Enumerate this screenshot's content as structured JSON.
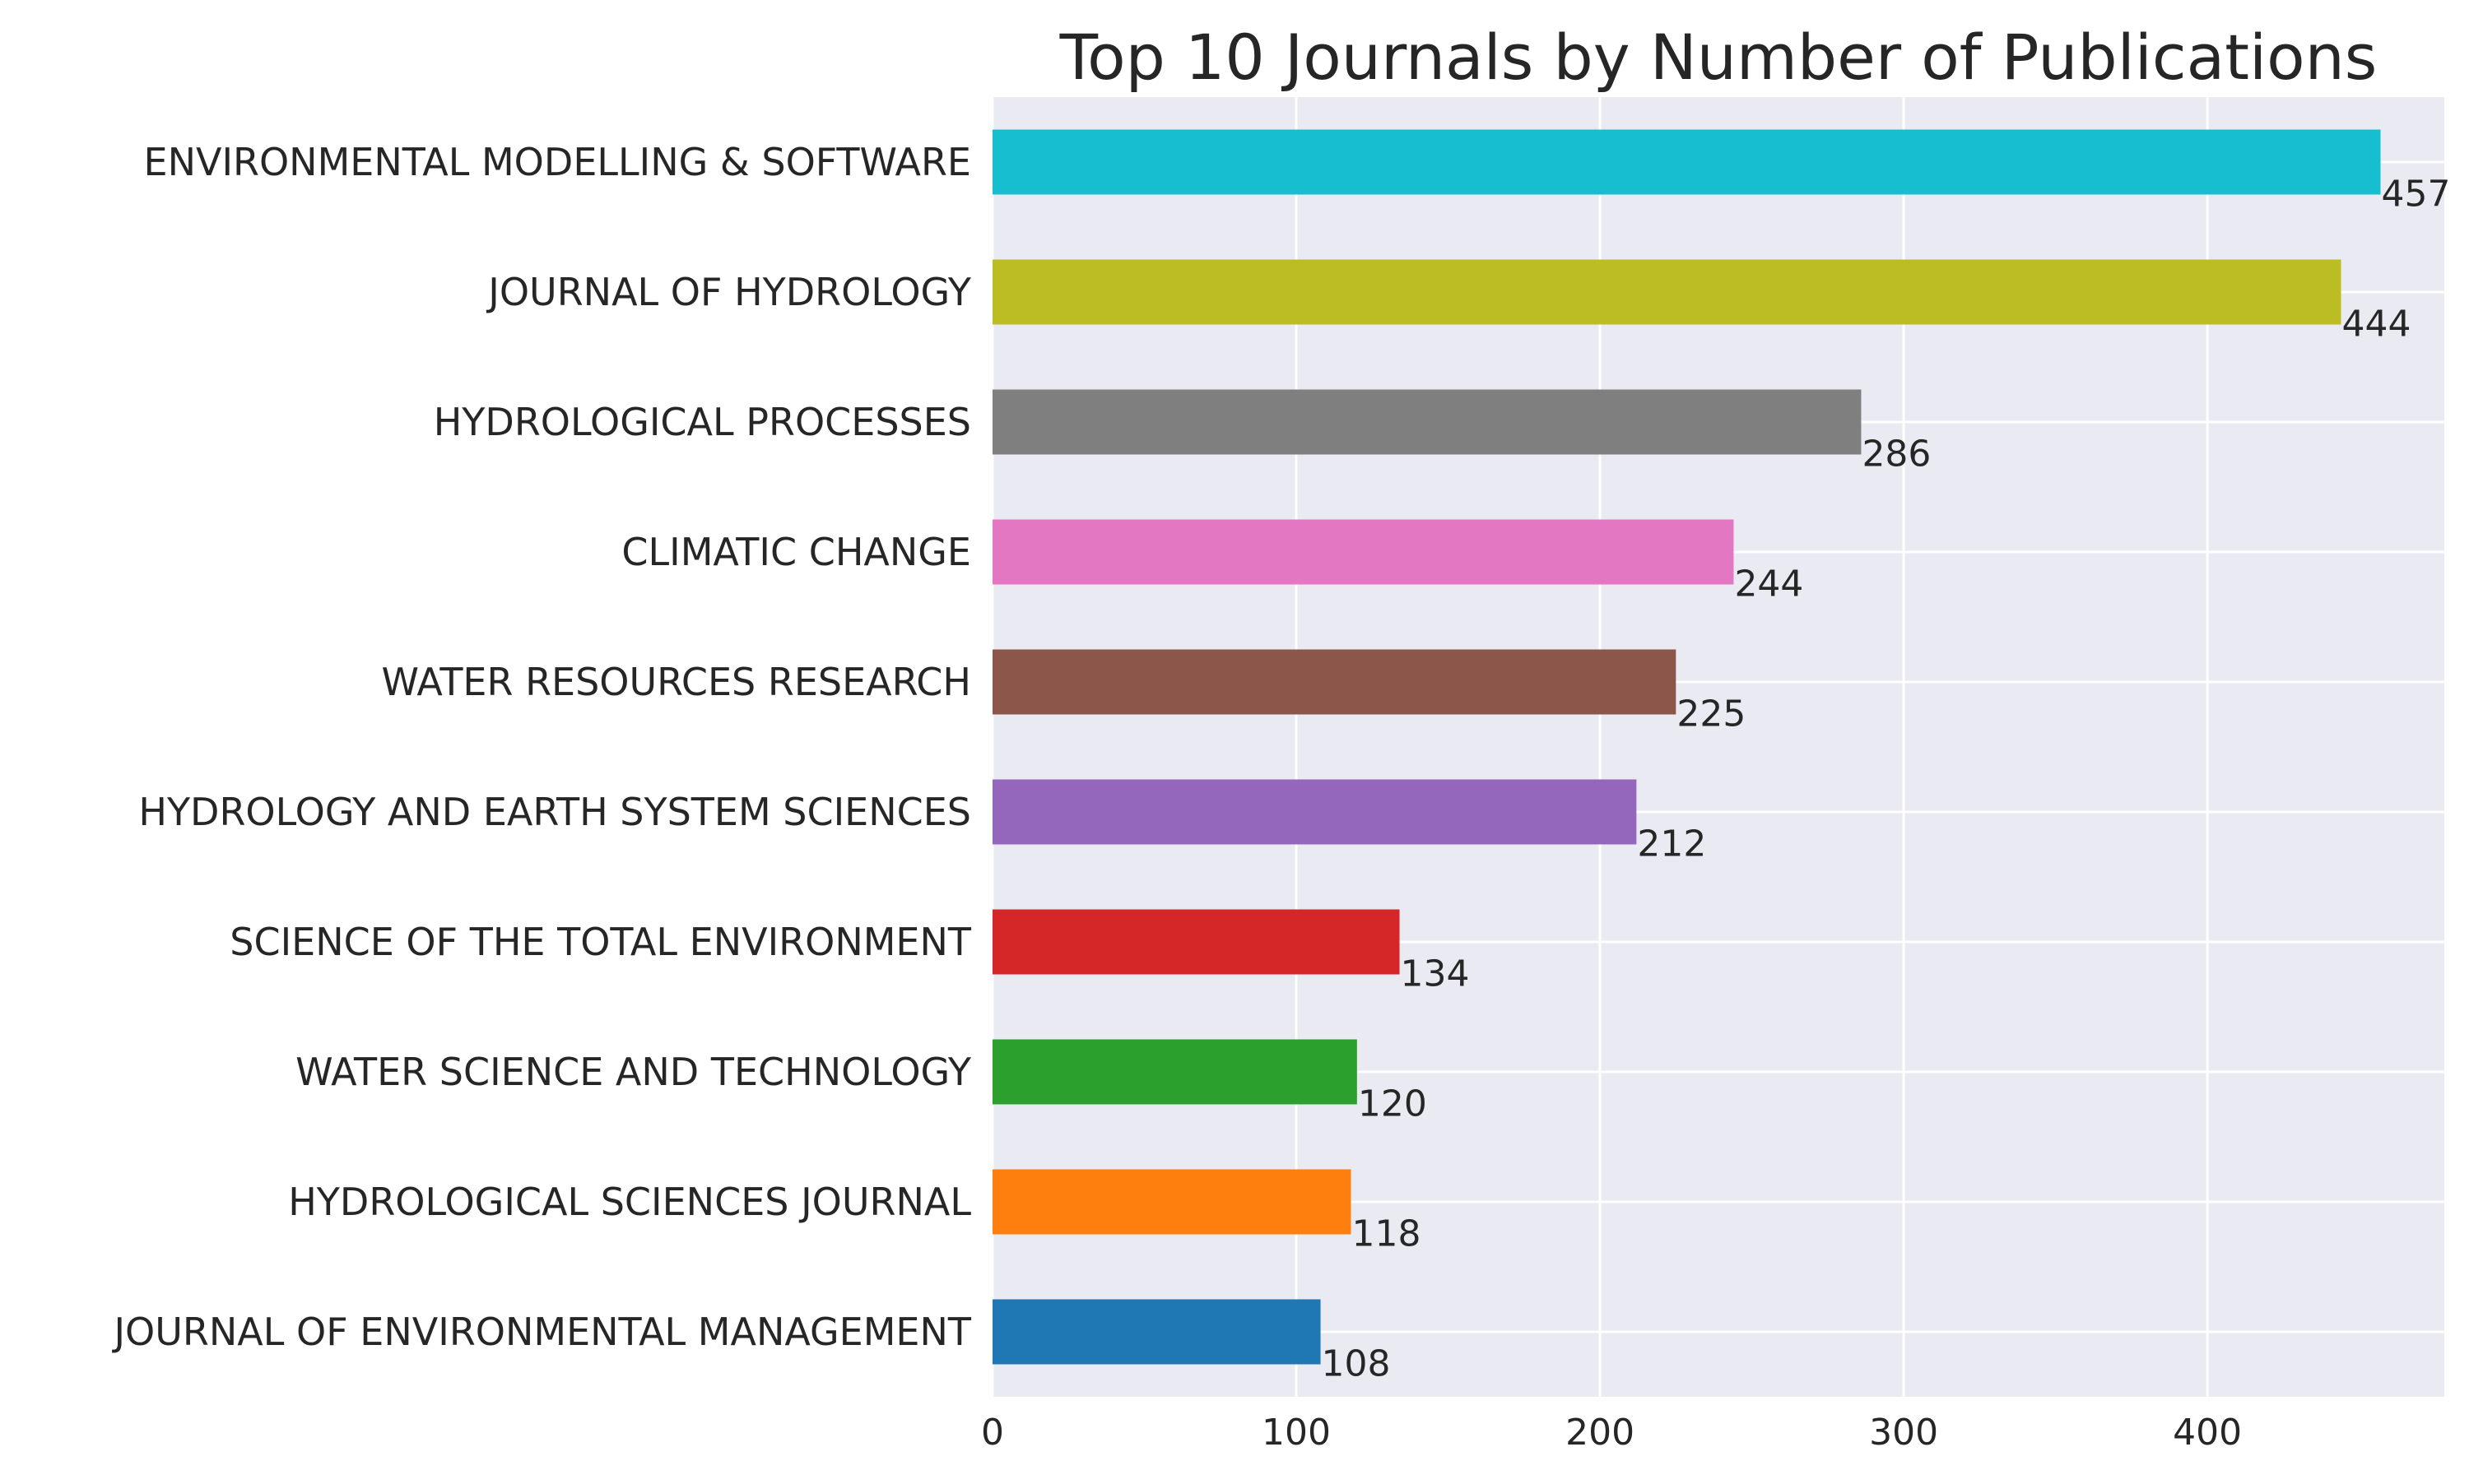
{
  "chart_data": {
    "type": "bar",
    "orientation": "horizontal",
    "title": "Top 10 Journals by Number of Publications",
    "xlabel": "",
    "ylabel": "",
    "xlim": [
      0,
      478
    ],
    "xticks": [
      0,
      100,
      200,
      300,
      400
    ],
    "grid": true,
    "categories": [
      "ENVIRONMENTAL MODELLING & SOFTWARE",
      "JOURNAL OF HYDROLOGY",
      "HYDROLOGICAL PROCESSES",
      "CLIMATIC CHANGE",
      "WATER RESOURCES RESEARCH",
      "HYDROLOGY AND EARTH SYSTEM SCIENCES",
      "SCIENCE OF THE TOTAL ENVIRONMENT",
      "WATER SCIENCE AND TECHNOLOGY",
      "HYDROLOGICAL SCIENCES JOURNAL",
      "JOURNAL OF ENVIRONMENTAL MANAGEMENT"
    ],
    "values": [
      457,
      444,
      286,
      244,
      225,
      212,
      134,
      120,
      118,
      108
    ],
    "data_labels": [
      "457",
      "444",
      "286",
      "244",
      "225",
      "212",
      "134",
      "120",
      "118",
      "108"
    ],
    "colors": [
      "#17becf",
      "#bcbd22",
      "#7f7f7f",
      "#e377c2",
      "#8c564b",
      "#9467bd",
      "#d62728",
      "#2ca02c",
      "#ff7f0e",
      "#1f77b4"
    ],
    "plot_background": "#eaeaf2",
    "grid_color": "#ffffff",
    "text_color": "#262626"
  }
}
